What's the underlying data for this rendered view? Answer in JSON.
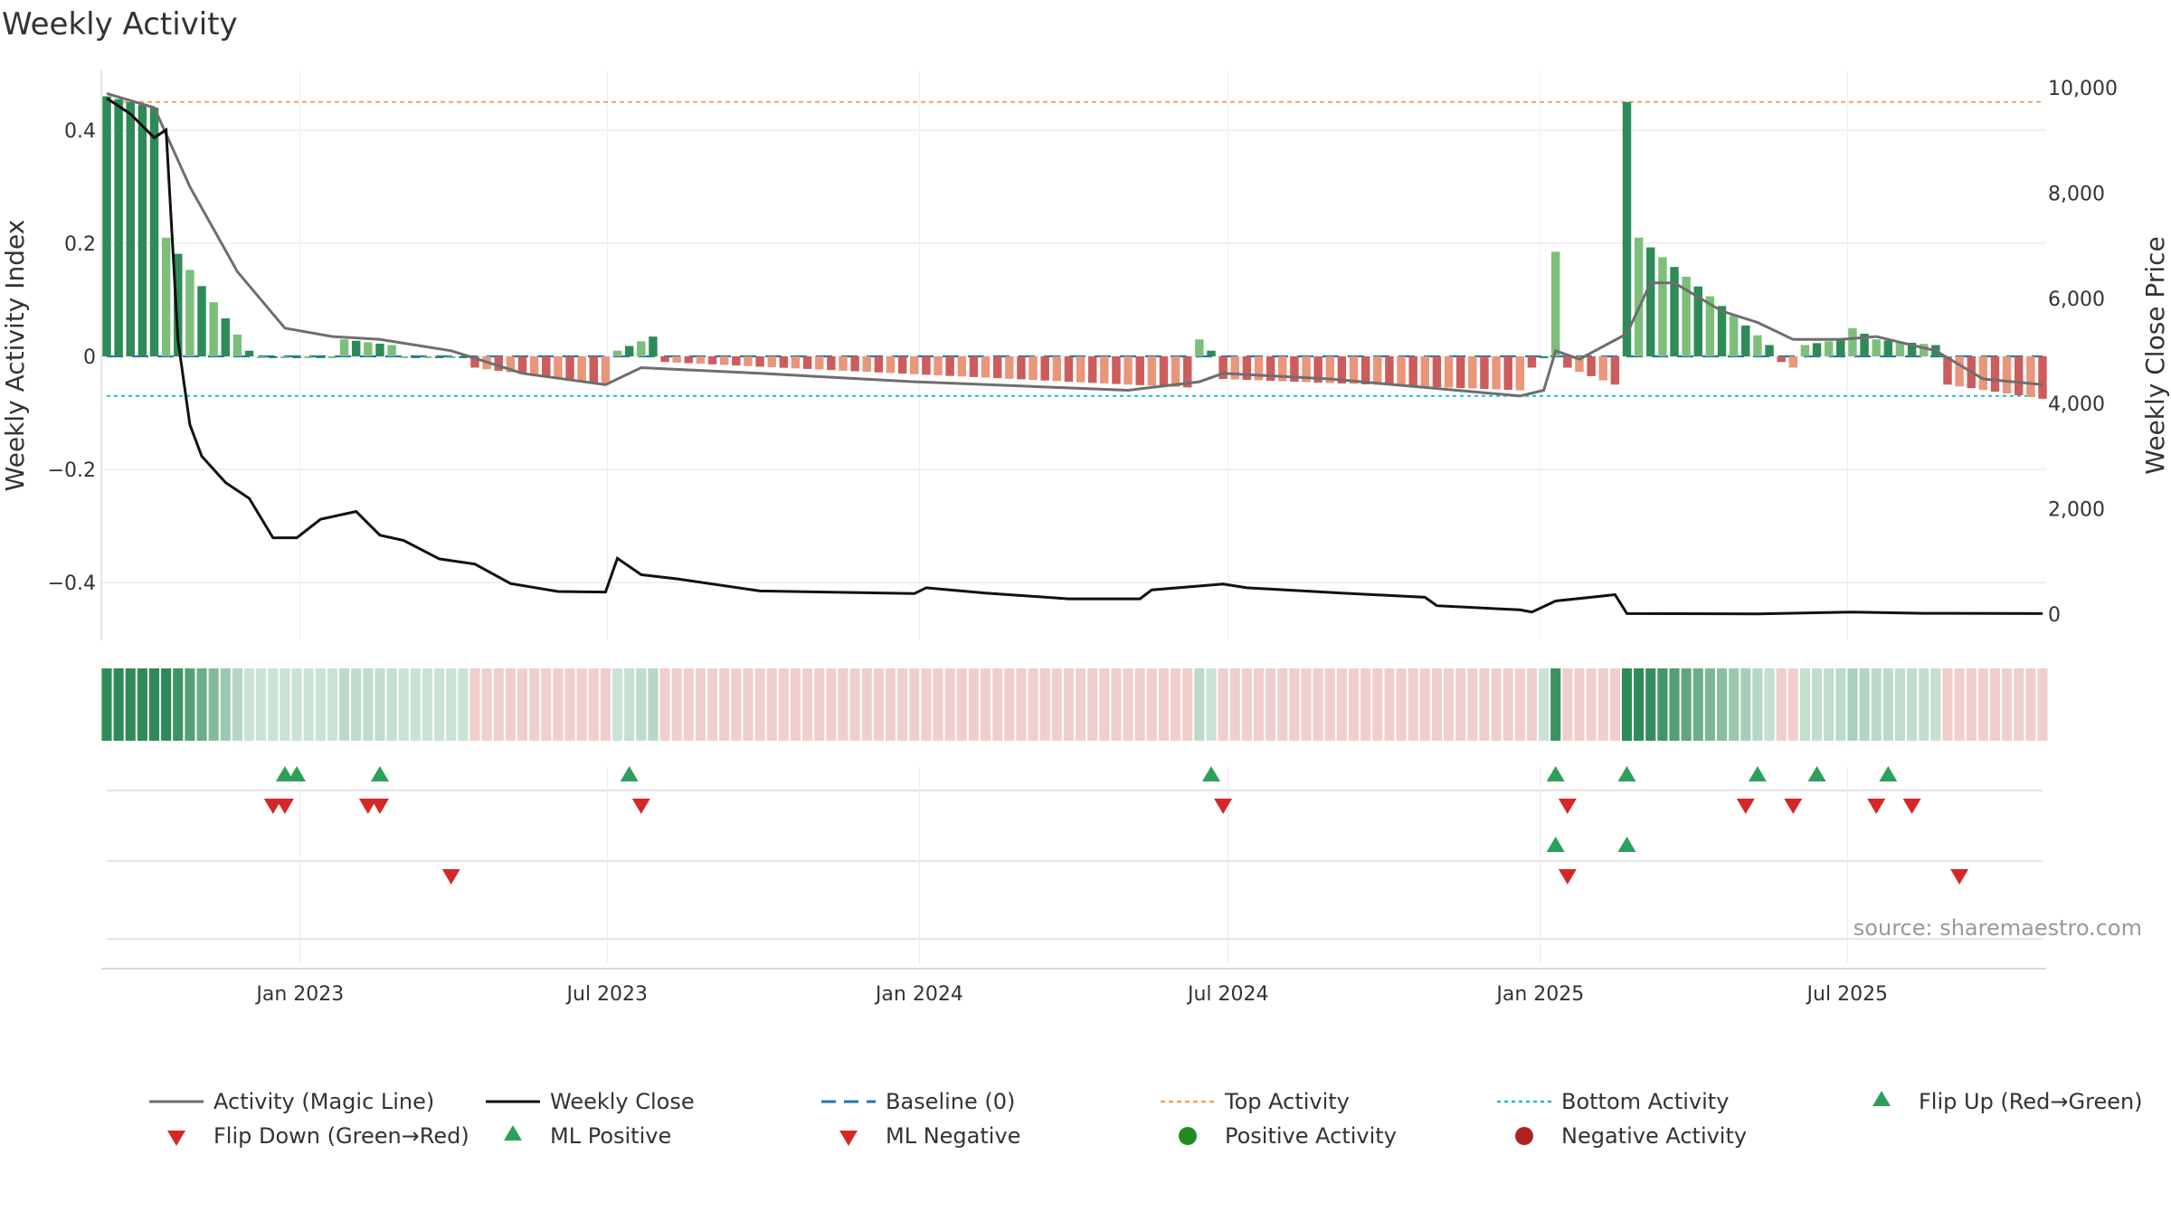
{
  "chart_data": {
    "type": "bar",
    "title": "Weekly Activity",
    "ylabel": "Weekly Activity Index",
    "y2label": "Weekly Close Price",
    "source": "source: sharemaestro.com",
    "ylim": [
      -0.46,
      0.47
    ],
    "y2lim": [
      0,
      10000
    ],
    "yticks": [
      {
        "v": 0.4,
        "label": "0.4"
      },
      {
        "v": 0.2,
        "label": "0.2"
      },
      {
        "v": 0,
        "label": "0"
      },
      {
        "v": -0.2,
        "label": "−0.2"
      },
      {
        "v": -0.4,
        "label": "−0.4"
      }
    ],
    "y2ticks": [
      {
        "v": 10000,
        "label": "10,000"
      },
      {
        "v": 8000,
        "label": "8,000"
      },
      {
        "v": 6000,
        "label": "6,000"
      },
      {
        "v": 4000,
        "label": "4,000"
      },
      {
        "v": 2000,
        "label": "2,000"
      },
      {
        "v": 0,
        "label": "0"
      }
    ],
    "x_start": "2022-09-09",
    "x_end": "2025-10-24",
    "xticks": [
      {
        "date": "2023-01-01",
        "label": "Jan 2023"
      },
      {
        "date": "2023-07-01",
        "label": "Jul 2023"
      },
      {
        "date": "2024-01-01",
        "label": "Jan 2024"
      },
      {
        "date": "2024-07-01",
        "label": "Jul 2024"
      },
      {
        "date": "2025-01-01",
        "label": "Jan 2025"
      },
      {
        "date": "2025-07-01",
        "label": "Jul 2025"
      }
    ],
    "top_activity": 0.45,
    "bottom_activity": -0.07,
    "baseline": 0,
    "activity_segments": [
      {
        "from": "2022-09-09",
        "to": "2022-10-07",
        "start": 0.46,
        "end": 0.44
      },
      {
        "from": "2022-10-14",
        "to": "2022-12-02",
        "start": 0.21,
        "end": 0.01
      },
      {
        "from": "2022-12-09",
        "to": "2023-01-20",
        "start": 0.0,
        "end": 0.0
      },
      {
        "from": "2023-01-27",
        "to": "2023-02-24",
        "start": 0.03,
        "end": 0.02
      },
      {
        "from": "2023-03-03",
        "to": "2023-04-07",
        "start": 0.0,
        "end": 0.0
      },
      {
        "from": "2023-04-14",
        "to": "2023-06-30",
        "start": -0.02,
        "end": -0.05
      },
      {
        "from": "2023-07-07",
        "to": "2023-07-28",
        "start": 0.01,
        "end": 0.035
      },
      {
        "from": "2023-08-04",
        "to": "2024-06-07",
        "start": -0.01,
        "end": -0.055
      },
      {
        "from": "2024-06-14",
        "to": "2024-06-21",
        "start": 0.03,
        "end": 0.01
      },
      {
        "from": "2024-06-28",
        "to": "2024-12-20",
        "start": -0.04,
        "end": -0.06
      },
      {
        "from": "2024-12-27",
        "to": "2025-01-03",
        "start": -0.02,
        "end": 0.0
      },
      {
        "from": "2025-01-10",
        "to": "2025-01-10",
        "start": 0.185,
        "end": 0.185
      },
      {
        "from": "2025-01-17",
        "to": "2025-02-14",
        "start": -0.02,
        "end": -0.05
      },
      {
        "from": "2025-02-21",
        "to": "2025-02-21",
        "start": 0.45,
        "end": 0.45
      },
      {
        "from": "2025-02-28",
        "to": "2025-05-16",
        "start": 0.21,
        "end": 0.02
      },
      {
        "from": "2025-05-23",
        "to": "2025-05-30",
        "start": -0.01,
        "end": -0.02
      },
      {
        "from": "2025-06-06",
        "to": "2025-06-27",
        "start": 0.02,
        "end": 0.03
      },
      {
        "from": "2025-07-04",
        "to": "2025-07-11",
        "start": 0.05,
        "end": 0.04
      },
      {
        "from": "2025-07-18",
        "to": "2025-08-22",
        "start": 0.03,
        "end": 0.02
      },
      {
        "from": "2025-08-29",
        "to": "2025-10-24",
        "start": -0.05,
        "end": -0.075
      }
    ],
    "magic_line": [
      {
        "date": "2022-09-09",
        "value": 0.465
      },
      {
        "date": "2022-10-07",
        "value": 0.44
      },
      {
        "date": "2022-10-28",
        "value": 0.3
      },
      {
        "date": "2022-11-25",
        "value": 0.15
      },
      {
        "date": "2022-12-23",
        "value": 0.05
      },
      {
        "date": "2023-01-20",
        "value": 0.035
      },
      {
        "date": "2023-02-17",
        "value": 0.03
      },
      {
        "date": "2023-03-31",
        "value": 0.01
      },
      {
        "date": "2023-05-12",
        "value": -0.03
      },
      {
        "date": "2023-06-30",
        "value": -0.05
      },
      {
        "date": "2023-07-21",
        "value": -0.02
      },
      {
        "date": "2023-09-29",
        "value": -0.03
      },
      {
        "date": "2023-12-29",
        "value": -0.045
      },
      {
        "date": "2024-05-03",
        "value": -0.06
      },
      {
        "date": "2024-06-14",
        "value": -0.045
      },
      {
        "date": "2024-06-28",
        "value": -0.03
      },
      {
        "date": "2024-08-30",
        "value": -0.04
      },
      {
        "date": "2024-10-25",
        "value": -0.055
      },
      {
        "date": "2024-12-20",
        "value": -0.07
      },
      {
        "date": "2025-01-03",
        "value": -0.06
      },
      {
        "date": "2025-01-10",
        "value": 0.01
      },
      {
        "date": "2025-01-24",
        "value": -0.005
      },
      {
        "date": "2025-02-21",
        "value": 0.04
      },
      {
        "date": "2025-03-07",
        "value": 0.13
      },
      {
        "date": "2025-03-21",
        "value": 0.13
      },
      {
        "date": "2025-04-18",
        "value": 0.08
      },
      {
        "date": "2025-05-09",
        "value": 0.06
      },
      {
        "date": "2025-05-30",
        "value": 0.03
      },
      {
        "date": "2025-06-27",
        "value": 0.03
      },
      {
        "date": "2025-07-18",
        "value": 0.035
      },
      {
        "date": "2025-08-22",
        "value": 0.01
      },
      {
        "date": "2025-09-19",
        "value": -0.04
      },
      {
        "date": "2025-10-24",
        "value": -0.05
      }
    ],
    "weekly_close": [
      {
        "date": "2022-09-09",
        "value": 9800
      },
      {
        "date": "2022-09-23",
        "value": 9500
      },
      {
        "date": "2022-10-07",
        "value": 9050
      },
      {
        "date": "2022-10-14",
        "value": 9200
      },
      {
        "date": "2022-10-21",
        "value": 5200
      },
      {
        "date": "2022-10-28",
        "value": 3600
      },
      {
        "date": "2022-11-04",
        "value": 3000
      },
      {
        "date": "2022-11-18",
        "value": 2500
      },
      {
        "date": "2022-12-02",
        "value": 2200
      },
      {
        "date": "2022-12-16",
        "value": 1450
      },
      {
        "date": "2022-12-30",
        "value": 1450
      },
      {
        "date": "2023-01-13",
        "value": 1800
      },
      {
        "date": "2023-02-03",
        "value": 1950
      },
      {
        "date": "2023-02-17",
        "value": 1500
      },
      {
        "date": "2023-03-03",
        "value": 1400
      },
      {
        "date": "2023-03-24",
        "value": 1050
      },
      {
        "date": "2023-04-14",
        "value": 950
      },
      {
        "date": "2023-05-05",
        "value": 580
      },
      {
        "date": "2023-06-02",
        "value": 430
      },
      {
        "date": "2023-06-30",
        "value": 420
      },
      {
        "date": "2023-07-07",
        "value": 1060
      },
      {
        "date": "2023-07-21",
        "value": 750
      },
      {
        "date": "2023-08-11",
        "value": 670
      },
      {
        "date": "2023-09-29",
        "value": 440
      },
      {
        "date": "2023-12-29",
        "value": 390
      },
      {
        "date": "2024-01-05",
        "value": 500
      },
      {
        "date": "2024-02-09",
        "value": 400
      },
      {
        "date": "2024-03-29",
        "value": 290
      },
      {
        "date": "2024-05-10",
        "value": 290
      },
      {
        "date": "2024-05-17",
        "value": 460
      },
      {
        "date": "2024-06-28",
        "value": 570
      },
      {
        "date": "2024-07-12",
        "value": 500
      },
      {
        "date": "2024-09-06",
        "value": 400
      },
      {
        "date": "2024-10-25",
        "value": 320
      },
      {
        "date": "2024-11-01",
        "value": 160
      },
      {
        "date": "2024-12-20",
        "value": 80
      },
      {
        "date": "2024-12-27",
        "value": 40
      },
      {
        "date": "2025-01-10",
        "value": 250
      },
      {
        "date": "2025-02-14",
        "value": 370
      },
      {
        "date": "2025-02-21",
        "value": 10
      },
      {
        "date": "2025-05-09",
        "value": 5
      },
      {
        "date": "2025-07-04",
        "value": 40
      },
      {
        "date": "2025-08-15",
        "value": 15
      },
      {
        "date": "2025-10-24",
        "value": 10
      }
    ],
    "flip_up_row1": [
      "2022-12-23",
      "2022-12-30",
      "2023-02-17",
      "2023-07-14",
      "2024-06-21",
      "2025-01-10",
      "2025-02-21",
      "2025-05-09",
      "2025-06-13",
      "2025-07-25"
    ],
    "flip_down_row1": [
      "2022-12-16",
      "2022-12-23",
      "2023-02-10",
      "2023-02-17",
      "2023-07-21",
      "2024-06-28",
      "2025-01-17",
      "2025-05-02",
      "2025-05-30",
      "2025-07-18",
      "2025-08-08"
    ],
    "ml_positive_row2": [
      "2025-01-10",
      "2025-02-21"
    ],
    "ml_negative_row2": [
      "2023-03-31",
      "2025-01-17",
      "2025-09-05"
    ],
    "legend": [
      {
        "key": "activity_line",
        "label": "Activity (Magic Line)"
      },
      {
        "key": "weekly_close",
        "label": "Weekly Close"
      },
      {
        "key": "baseline",
        "label": "Baseline (0)"
      },
      {
        "key": "top_activity",
        "label": "Top Activity"
      },
      {
        "key": "bottom_activity",
        "label": "Bottom Activity"
      },
      {
        "key": "flip_up",
        "label": "Flip Up (Red→Green)"
      },
      {
        "key": "flip_down",
        "label": "Flip Down (Green→Red)"
      },
      {
        "key": "ml_positive",
        "label": "ML Positive"
      },
      {
        "key": "ml_negative",
        "label": "ML Negative"
      },
      {
        "key": "positive_activity",
        "label": "Positive Activity"
      },
      {
        "key": "negative_activity",
        "label": "Negative Activity"
      }
    ],
    "legend_placement": "bottom",
    "colors": {
      "strong_green": "#2e8b57",
      "light_green": "#7dbf7a",
      "strong_red": "#cd5c5c",
      "light_red": "#e9967a",
      "magic_line": "#6e6e6e",
      "weekly_close": "#111111",
      "baseline": "#1f77b4",
      "top_activity": "#f4a460",
      "bottom_activity": "#17becf",
      "marker_green": "#2ca05a",
      "marker_red": "#d62728",
      "dot_green": "#228b22",
      "dot_red": "#b22222"
    }
  }
}
